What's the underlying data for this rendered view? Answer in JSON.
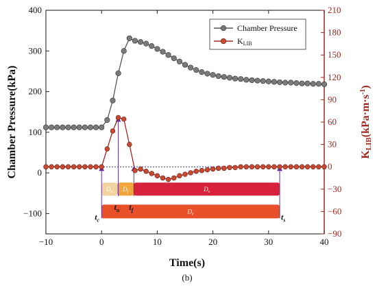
{
  "chart_data": {
    "type": "line",
    "caption": "(b)",
    "xlabel": "Time(s)",
    "ylabel_left": "Chamber Pressure(kPa)",
    "ylabel_right": "K",
    "ylabel_right_sub": "LIB",
    "ylabel_right_unit": "(kPa·m·s",
    "ylabel_right_exp": "-1",
    "ylabel_right_close": ")",
    "xlim": [
      -10,
      40
    ],
    "ylim_left": [
      -150,
      400
    ],
    "ylim_right": [
      -90,
      210
    ],
    "x_ticks": [
      -10,
      0,
      10,
      20,
      30,
      40
    ],
    "x_tick_labels": [
      "−10",
      "0",
      "10",
      "20",
      "30",
      "40"
    ],
    "y_left_ticks": [
      -100,
      0,
      100,
      200,
      300,
      400
    ],
    "y_left_tick_labels": [
      "−100",
      "0",
      "100",
      "200",
      "300",
      "400"
    ],
    "y_right_ticks": [
      -90,
      -60,
      -30,
      0,
      30,
      60,
      90,
      120,
      150,
      180,
      210
    ],
    "y_right_tick_labels": [
      "−90",
      "−60",
      "−30",
      "0",
      "30",
      "60",
      "90",
      "120",
      "150",
      "180",
      "210"
    ],
    "grid": false,
    "legend_position": "top-right",
    "colors": {
      "chamber": "#555555",
      "klib": "#a0281e",
      "right_axis": "#a0281e",
      "zero_line": "#1f2fb0",
      "marker_lines": "#6b2fa8"
    },
    "series": [
      {
        "name": "Chamber Pressure",
        "axis": "left",
        "x": [
          -10,
          -9,
          -8,
          -7,
          -6,
          -5,
          -4,
          -3,
          -2,
          -1,
          0,
          1,
          2,
          3,
          4,
          5,
          6,
          7,
          8,
          9,
          10,
          11,
          12,
          13,
          14,
          15,
          16,
          17,
          18,
          19,
          20,
          21,
          22,
          23,
          24,
          25,
          26,
          27,
          28,
          29,
          30,
          31,
          32,
          33,
          34,
          35,
          36,
          37,
          38,
          39,
          40
        ],
        "y": [
          112,
          112,
          112,
          112,
          112,
          112,
          112,
          112,
          112,
          112,
          112,
          130,
          178,
          245,
          300,
          331,
          325,
          322,
          318,
          312,
          305,
          298,
          290,
          282,
          274,
          266,
          259,
          253,
          248,
          244,
          241,
          238,
          236,
          234,
          232,
          231,
          229,
          228,
          227,
          226,
          225,
          224,
          223,
          222,
          222,
          221,
          220,
          220,
          219,
          219,
          218
        ]
      },
      {
        "name": "K",
        "name_sub": "LIB",
        "axis": "right",
        "x": [
          -10,
          -9,
          -8,
          -7,
          -6,
          -5,
          -4,
          -3,
          -2,
          -1,
          0,
          1,
          2,
          3,
          4,
          5,
          6,
          7,
          8,
          9,
          10,
          11,
          12,
          13,
          14,
          15,
          16,
          17,
          18,
          19,
          20,
          21,
          22,
          23,
          24,
          25,
          26,
          27,
          28,
          29,
          30,
          31,
          32,
          33,
          34,
          35,
          36,
          37,
          38,
          39,
          40
        ],
        "y": [
          0,
          0,
          0,
          0,
          0,
          0,
          0,
          0,
          0,
          0,
          0,
          24,
          48,
          66,
          64,
          30,
          -5,
          -3,
          -6,
          -9,
          -12,
          -15,
          -17,
          -15,
          -12,
          -10,
          -8,
          -6,
          -5,
          -4,
          -3,
          -2,
          -2,
          -1,
          -1,
          0,
          0,
          0,
          0,
          0,
          0,
          0,
          0,
          0,
          0,
          0,
          0,
          0,
          0,
          0,
          0
        ]
      }
    ],
    "annotations": {
      "time_markers": [
        {
          "label": "t",
          "sub": "c",
          "x": 0
        },
        {
          "label": "t",
          "sub": "u",
          "x": 3
        },
        {
          "label": "t",
          "sub": "f",
          "x": 5.8
        },
        {
          "label": "t",
          "sub": "s",
          "x": 32
        }
      ],
      "bars": [
        {
          "label": "D",
          "sub": "u",
          "x0": 0,
          "x1": 2.8,
          "y": -30,
          "color": "#f2d3a0"
        },
        {
          "label": "D",
          "sub": "f",
          "x0": 2.8,
          "x1": 5.8,
          "y": -30,
          "color": "#f1a43a"
        },
        {
          "label": "D",
          "sub": "s",
          "x0": 5.8,
          "x1": 32,
          "y": -30,
          "color": "#d8213a"
        },
        {
          "label": "D",
          "sub": "e",
          "x0": 0,
          "x1": 32,
          "y": -60,
          "color": "#e8502a"
        }
      ]
    }
  }
}
